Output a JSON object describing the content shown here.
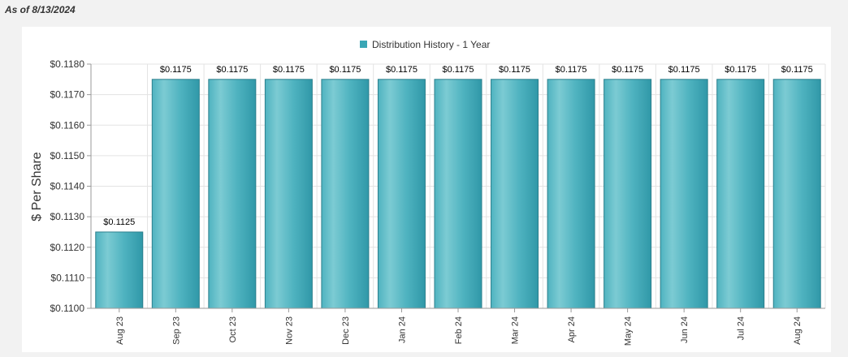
{
  "as_of": "As of 8/13/2024",
  "chart_data": {
    "type": "bar",
    "legend": "Distribution History - 1 Year",
    "legend_position": "top-center",
    "ylabel": "$ Per Share",
    "xlabel": "",
    "ylim": [
      0.11,
      0.118
    ],
    "yticks": [
      0.11,
      0.111,
      0.112,
      0.113,
      0.114,
      0.115,
      0.116,
      0.117,
      0.118
    ],
    "categories": [
      "Aug 23",
      "Sep 23",
      "Oct 23",
      "Nov 23",
      "Dec 23",
      "Jan 24",
      "Feb 24",
      "Mar 24",
      "Apr 24",
      "May 24",
      "Jun 24",
      "Jul 24",
      "Aug 24"
    ],
    "values": [
      0.1125,
      0.1175,
      0.1175,
      0.1175,
      0.1175,
      0.1175,
      0.1175,
      0.1175,
      0.1175,
      0.1175,
      0.1175,
      0.1175,
      0.1175
    ],
    "data_labels": [
      "$0.1125",
      "$0.1175",
      "$0.1175",
      "$0.1175",
      "$0.1175",
      "$0.1175",
      "$0.1175",
      "$0.1175",
      "$0.1175",
      "$0.1175",
      "$0.1175",
      "$0.1175",
      "$0.1175"
    ],
    "bar_color": "#3aa6b5",
    "grid": true
  }
}
